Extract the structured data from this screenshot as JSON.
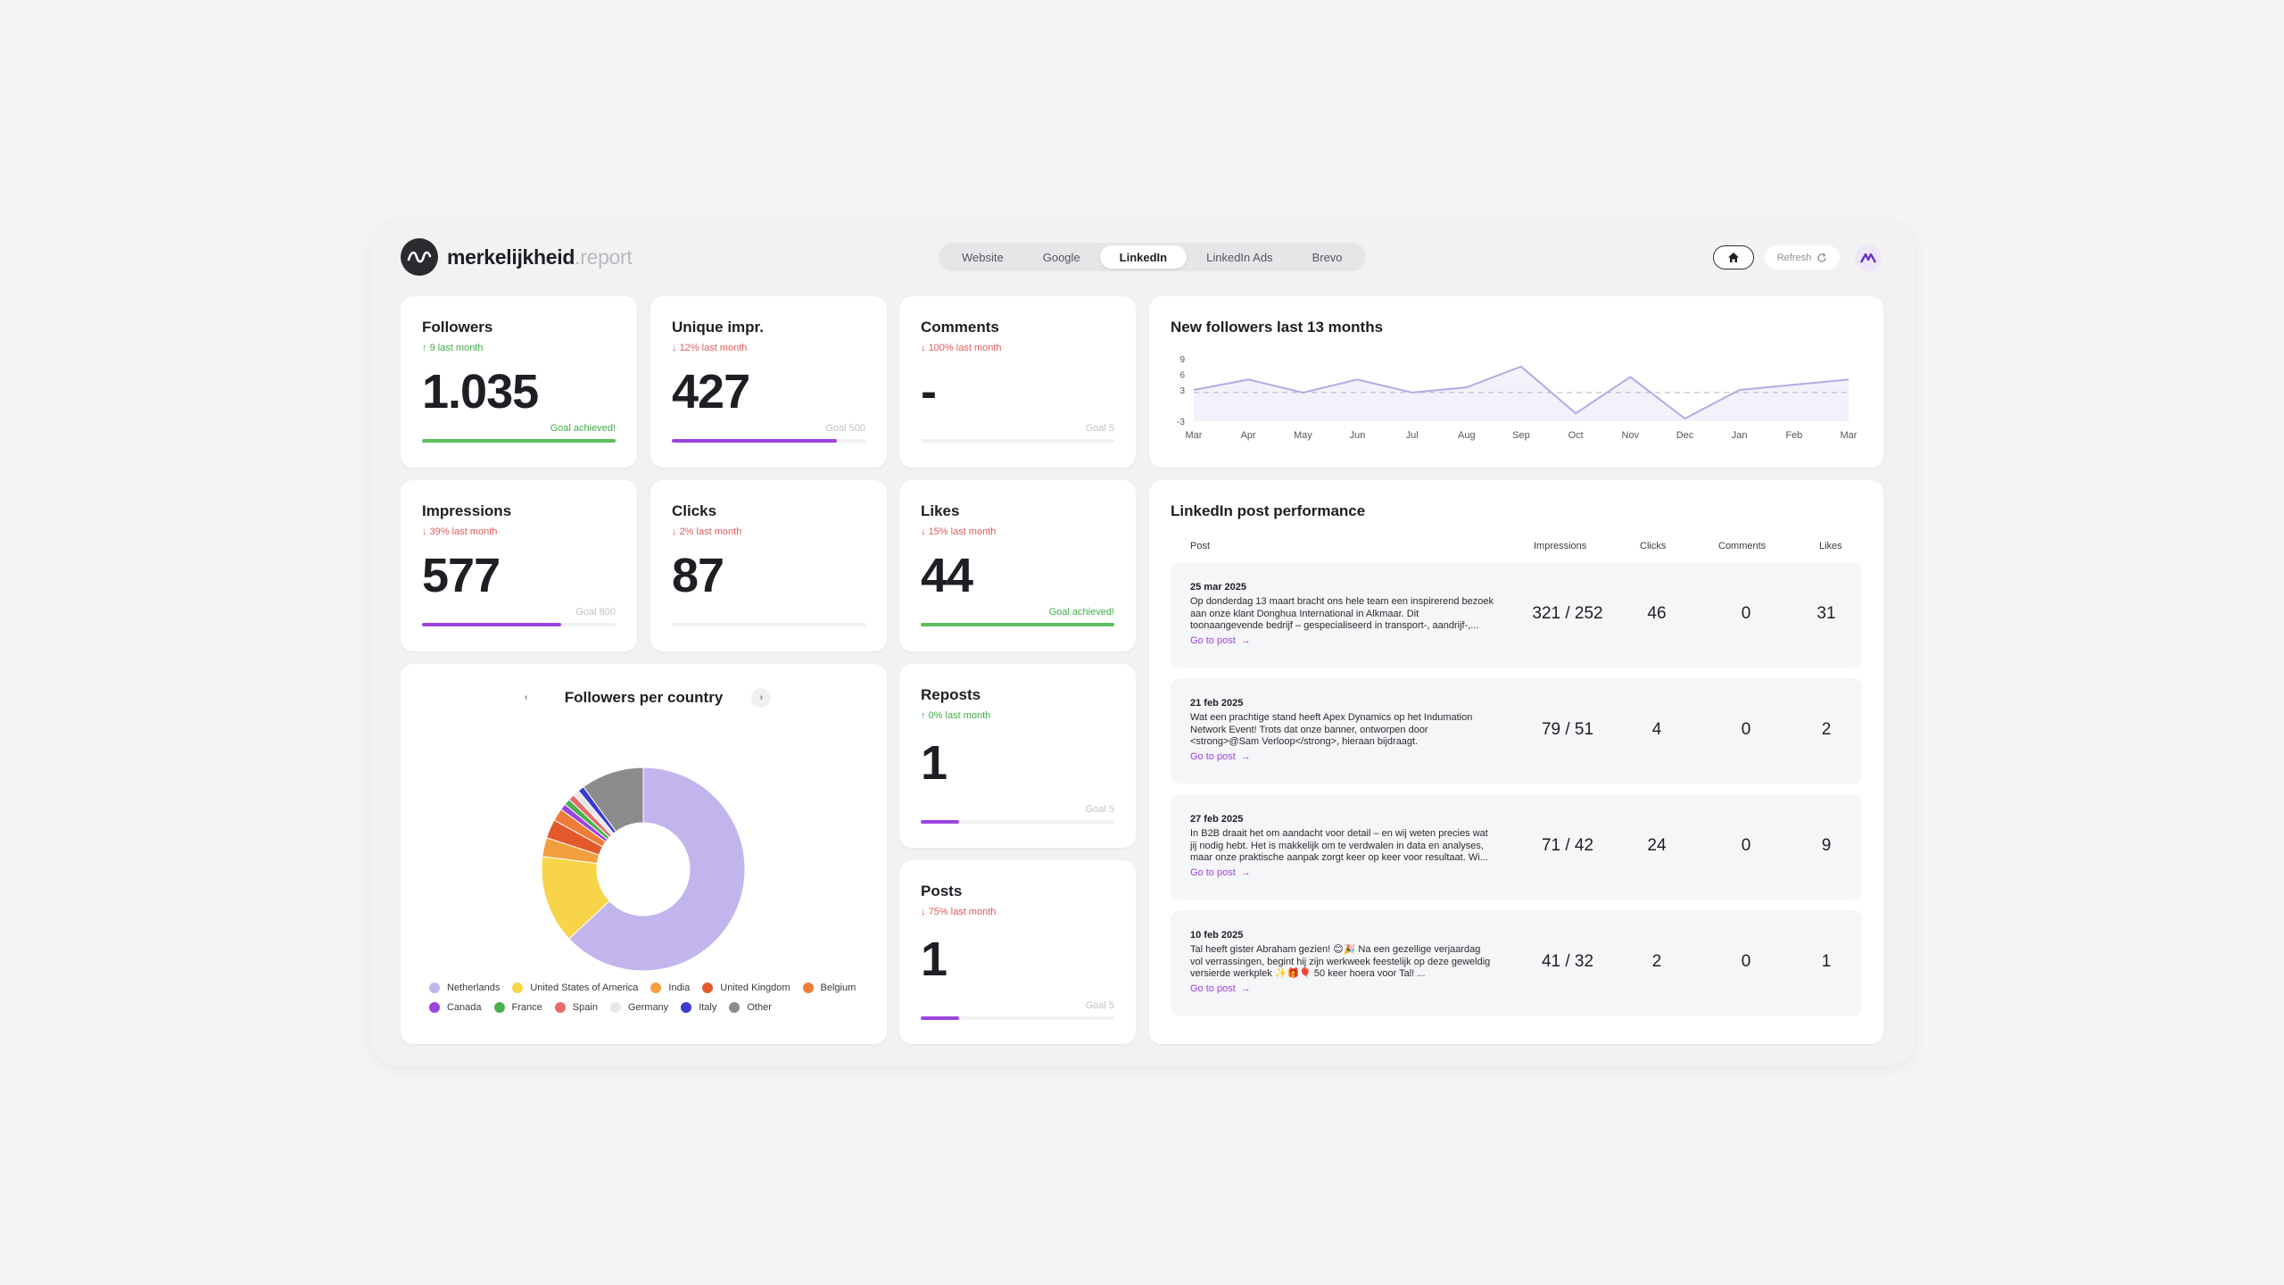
{
  "brand": {
    "name": "merkelijkheid",
    "suffix": ".report"
  },
  "tabs": [
    {
      "label": "Website",
      "active": false
    },
    {
      "label": "Google",
      "active": false
    },
    {
      "label": "LinkedIn",
      "active": true
    },
    {
      "label": "LinkedIn Ads",
      "active": false
    },
    {
      "label": "Brevo",
      "active": false
    }
  ],
  "header": {
    "refresh_label": "Refresh"
  },
  "kpis": {
    "followers": {
      "title": "Followers",
      "delta": "9 last month",
      "direction": "up",
      "value": "1.035",
      "goal": "Goal achieved!",
      "progress": 1.0
    },
    "unique_impr": {
      "title": "Unique impr.",
      "delta": "12% last month",
      "direction": "down",
      "value": "427",
      "goal": "Goal 500",
      "progress": 0.854
    },
    "comments": {
      "title": "Comments",
      "delta": "100% last month",
      "direction": "down",
      "value": "-",
      "goal": "Goal 5",
      "progress": 0
    },
    "impressions": {
      "title": "Impressions",
      "delta": "39% last month",
      "direction": "down",
      "value": "577",
      "goal": "Goal 800",
      "progress": 0.72
    },
    "clicks": {
      "title": "Clicks",
      "delta": "2% last month",
      "direction": "down",
      "value": "87",
      "goal": "",
      "progress": 0
    },
    "likes": {
      "title": "Likes",
      "delta": "15% last month",
      "direction": "down",
      "value": "44",
      "goal": "Goal achieved!",
      "progress": 1.0
    },
    "reposts": {
      "title": "Reposts",
      "delta": "0% last month",
      "direction": "up",
      "value": "1",
      "goal": "Goal 5",
      "progress": 0.2
    },
    "posts": {
      "title": "Posts",
      "delta": "75% last month",
      "direction": "down",
      "value": "1",
      "goal": "Goal 5",
      "progress": 0.2
    }
  },
  "followers_chart": {
    "title": "New followers last 13 months",
    "y_ticks": [
      "9",
      "6",
      "3",
      "-3"
    ],
    "x_labels": [
      "Mar",
      "Apr",
      "May",
      "Jun",
      "Jul",
      "Aug",
      "Sep",
      "Oct",
      "Nov",
      "Dec",
      "Jan",
      "Feb",
      "Mar"
    ]
  },
  "country_chart": {
    "title": "Followers per country"
  },
  "posts_table": {
    "title": "LinkedIn post performance",
    "headers": {
      "post": "Post",
      "impressions": "Impressions",
      "clicks": "Clicks",
      "comments": "Comments",
      "likes": "Likes"
    },
    "link_label": "Go to post",
    "rows": [
      {
        "date": "25 mar 2025",
        "text": "Op donderdag 13 maart bracht ons hele team een inspirerend bezoek aan onze klant Donghua International in Alkmaar. Dit toonaangevende bedrijf – gespecialiseerd in transport-, aandrijf-,...",
        "impressions": "321 / 252",
        "clicks": "46",
        "comments": "0",
        "likes": "31"
      },
      {
        "date": "21 feb 2025",
        "text": "Wat een prachtige stand heeft Apex Dynamics op het Indumation Network Event! Trots dat onze banner, ontworpen door <strong>@Sam Verloop</strong>, hieraan bijdraagt.",
        "impressions": "79 / 51",
        "clicks": "4",
        "comments": "0",
        "likes": "2"
      },
      {
        "date": "27 feb 2025",
        "text": "In B2B draait het om aandacht voor detail – en wij weten precies wat jij nodig hebt. Het is makkelijk om te verdwalen in data en analyses, maar onze praktische aanpak zorgt keer op keer voor resultaat. Wi...",
        "impressions": "71 / 42",
        "clicks": "24",
        "comments": "0",
        "likes": "9"
      },
      {
        "date": "10 feb 2025",
        "text": "Tal heeft gister Abraham gezien! 😊🎉 Na een gezellige verjaardag vol verrassingen, begint hij zijn werkweek feestelijk op deze geweldig versierde werkplek ✨🎁🎈 50 keer hoera voor Tal! ...",
        "impressions": "41 / 32",
        "clicks": "2",
        "comments": "0",
        "likes": "1"
      }
    ]
  },
  "chart_data": [
    {
      "type": "line",
      "title": "New followers last 13 months",
      "x": [
        "Mar",
        "Apr",
        "May",
        "Jun",
        "Jul",
        "Aug",
        "Sep",
        "Oct",
        "Nov",
        "Dec",
        "Jan",
        "Feb",
        "Mar"
      ],
      "series": [
        {
          "values": [
            3,
            5,
            2.5,
            5,
            2.5,
            3.5,
            7.5,
            -1.5,
            5.5,
            -2.5,
            3,
            4,
            5
          ]
        }
      ],
      "reference_line": 2.5,
      "ylim": [
        -3,
        9
      ],
      "y_ticks": [
        -3,
        3,
        6,
        9
      ],
      "color": "#b7a8e3"
    },
    {
      "type": "pie",
      "title": "Followers per country",
      "labels": [
        "Netherlands",
        "United States of America",
        "India",
        "United Kingdom",
        "Belgium",
        "Canada",
        "France",
        "Spain",
        "Germany",
        "Italy",
        "Other"
      ],
      "values": [
        63,
        14,
        3,
        3,
        2,
        1,
        1,
        1,
        1,
        1,
        10
      ],
      "colors": [
        "#c2b5ee",
        "#f8d548",
        "#f2a03d",
        "#e25a2b",
        "#ef7d37",
        "#9a44e0",
        "#4cb050",
        "#e86b6b",
        "#e8e8ea",
        "#3b3bd1",
        "#8c8c8c"
      ],
      "legend_position": "bottom"
    }
  ]
}
